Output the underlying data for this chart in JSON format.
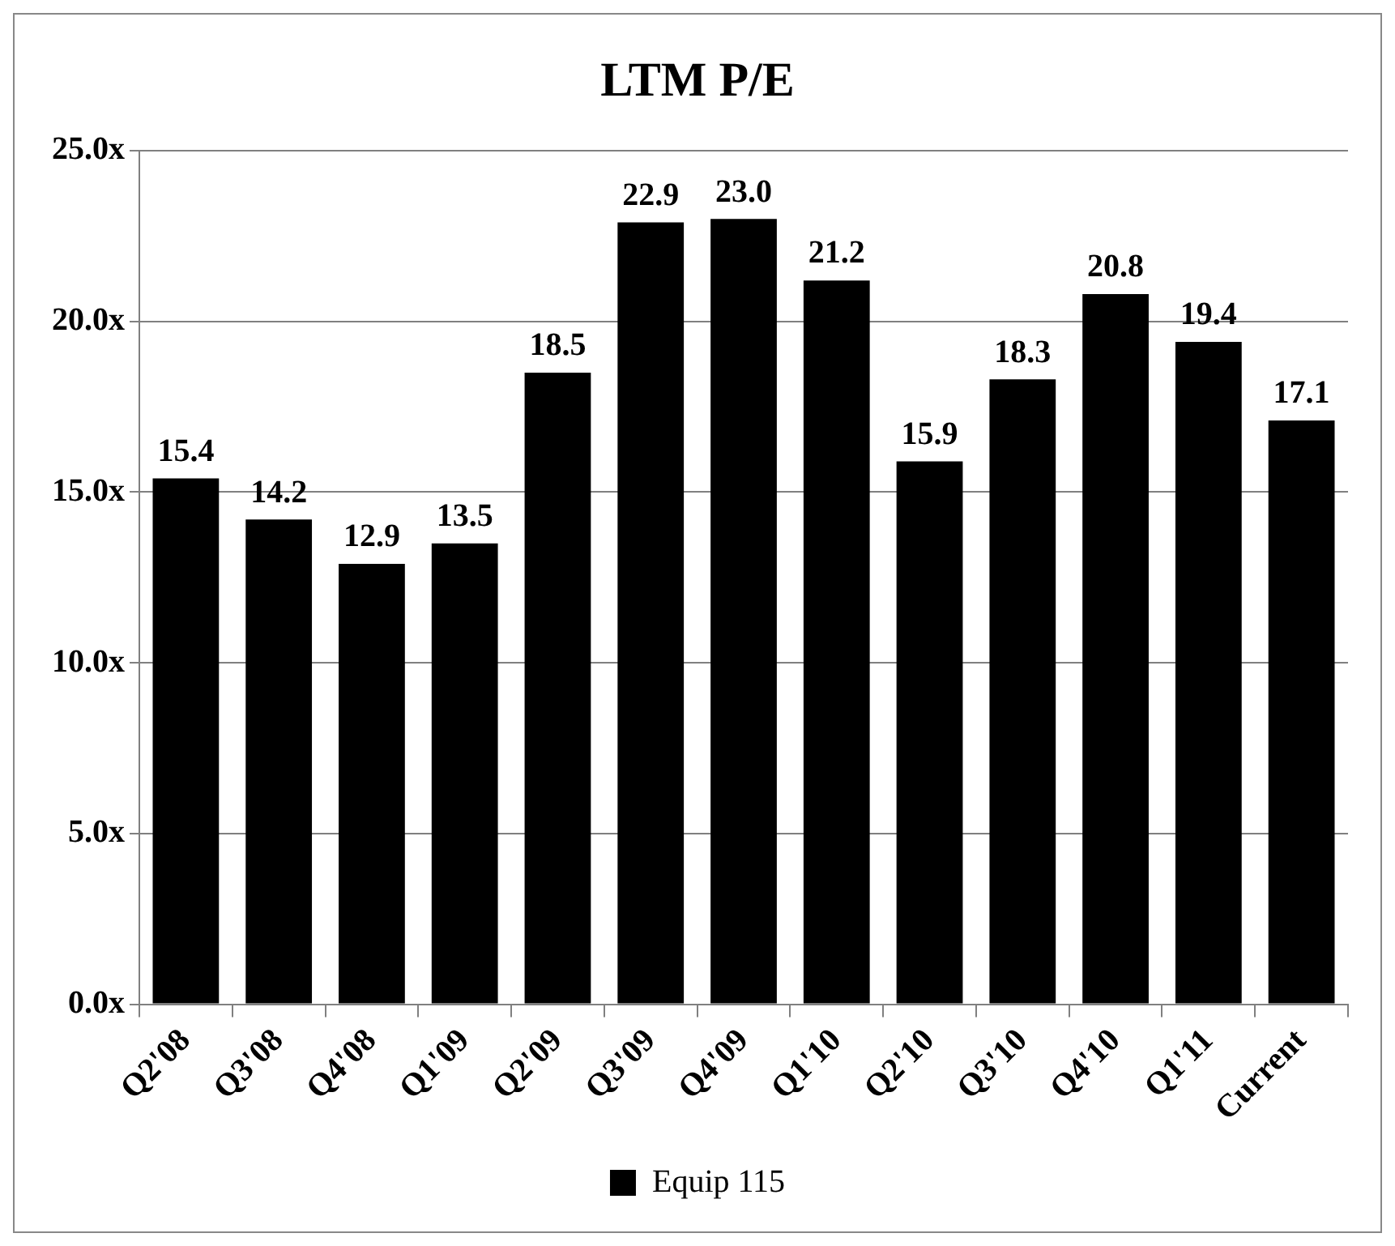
{
  "chart_data": {
    "type": "bar",
    "title": "LTM P/E",
    "categories": [
      "Q2'08",
      "Q3'08",
      "Q4'08",
      "Q1'09",
      "Q2'09",
      "Q3'09",
      "Q4'09",
      "Q1'10",
      "Q2'10",
      "Q3'10",
      "Q4'10",
      "Q1'11",
      "Current"
    ],
    "series": [
      {
        "name": "Equip 115",
        "color": "#000000",
        "values": [
          15.4,
          14.2,
          12.9,
          13.5,
          18.5,
          22.9,
          23.0,
          21.2,
          15.9,
          18.3,
          20.8,
          19.4,
          17.1
        ],
        "value_labels": [
          "15.4",
          "14.2",
          "12.9",
          "13.5",
          "18.5",
          "22.9",
          "23.0",
          "21.2",
          "15.9",
          "18.3",
          "20.8",
          "19.4",
          "17.1"
        ]
      }
    ],
    "ylim": [
      0,
      25
    ],
    "yticks": [
      {
        "value": 0,
        "label": "0.0x"
      },
      {
        "value": 5,
        "label": "5.0x"
      },
      {
        "value": 10,
        "label": "10.0x"
      },
      {
        "value": 15,
        "label": "15.0x"
      },
      {
        "value": 20,
        "label": "20.0x"
      },
      {
        "value": 25,
        "label": "25.0x"
      }
    ],
    "grid": "y",
    "legend": "bottom"
  }
}
